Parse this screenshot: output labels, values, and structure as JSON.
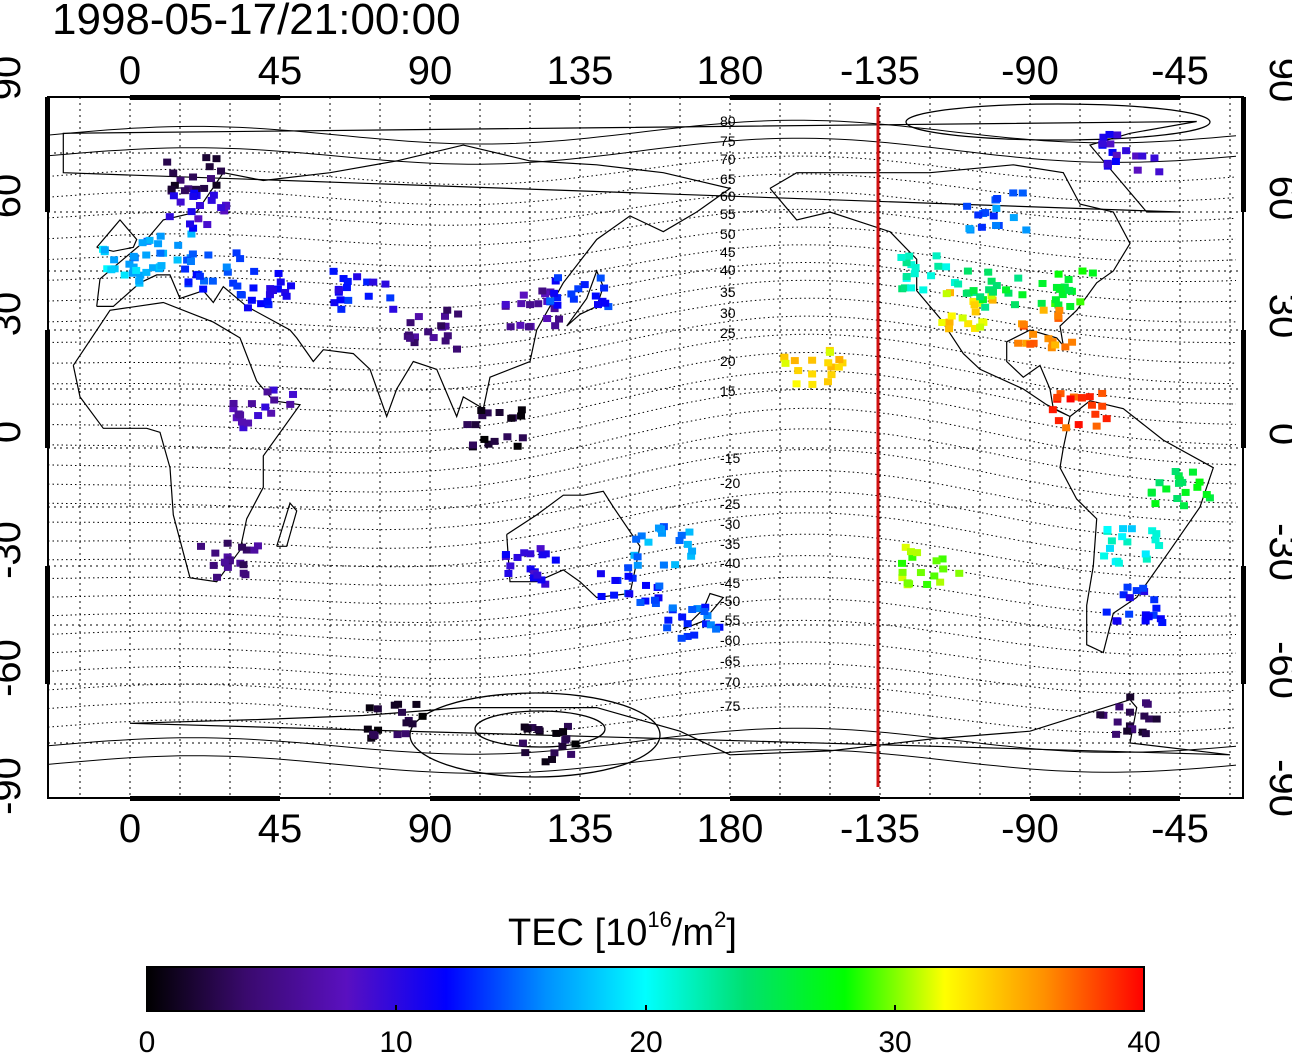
{
  "title": "1998-05-17/21:00:00",
  "map": {
    "x_ticks": [
      "0",
      "45",
      "90",
      "135",
      "180",
      "-135",
      "-90",
      "-45"
    ],
    "y_ticks": [
      "90",
      "60",
      "30",
      "0",
      "-30",
      "-60",
      "-90"
    ],
    "contour_labels": [
      "80",
      "75",
      "70",
      "65",
      "60",
      "55",
      "50",
      "45",
      "40",
      "35",
      "30",
      "25",
      "20",
      "15",
      "-15",
      "-20",
      "-25",
      "-30",
      "-35",
      "-40",
      "-45",
      "-50",
      "-55",
      "-60",
      "-65",
      "-70",
      "-75"
    ],
    "terminator_color": "#d01010"
  },
  "colorbar": {
    "label_main": "TEC  [10",
    "label_sup1": "16",
    "label_mid": "/m",
    "label_sup2": "2",
    "label_end": "]",
    "min": 0,
    "max": 40,
    "ticks": [
      "0",
      "10",
      "20",
      "30",
      "40"
    ],
    "stops": [
      "#000000",
      "#3a0a6e",
      "#5a10c0",
      "#0000ff",
      "#0090ff",
      "#00ffff",
      "#00e070",
      "#00ff00",
      "#ffff00",
      "#ff9000",
      "#ff0000"
    ]
  },
  "tec_clusters": [
    {
      "lon": 0,
      "lat": 46,
      "tec": 18
    },
    {
      "lon": 10,
      "lat": 50,
      "tec": 16
    },
    {
      "lon": 20,
      "lat": 70,
      "tec": 3
    },
    {
      "lon": 20,
      "lat": 60,
      "tec": 10
    },
    {
      "lon": 25,
      "lat": 45,
      "tec": 14
    },
    {
      "lon": 40,
      "lat": 40,
      "tec": 12
    },
    {
      "lon": 40,
      "lat": 10,
      "tec": 8
    },
    {
      "lon": 30,
      "lat": -28,
      "tec": 5
    },
    {
      "lon": 70,
      "lat": 40,
      "tec": 12
    },
    {
      "lon": 90,
      "lat": 30,
      "tec": 5
    },
    {
      "lon": 120,
      "lat": 35,
      "tec": 7
    },
    {
      "lon": 135,
      "lat": 40,
      "tec": 13
    },
    {
      "lon": 120,
      "lat": -30,
      "tec": 10
    },
    {
      "lon": 150,
      "lat": -35,
      "tec": 13
    },
    {
      "lon": 170,
      "lat": -45,
      "tec": 14
    },
    {
      "lon": 160,
      "lat": -25,
      "tec": 16
    },
    {
      "lon": 110,
      "lat": 5,
      "tec": 2
    },
    {
      "lon": 125,
      "lat": -75,
      "tec": 2
    },
    {
      "lon": 80,
      "lat": -70,
      "tec": 2
    },
    {
      "lon": -155,
      "lat": 20,
      "tec": 33
    },
    {
      "lon": -120,
      "lat": 45,
      "tec": 22
    },
    {
      "lon": -110,
      "lat": 35,
      "tec": 33
    },
    {
      "lon": -100,
      "lat": 40,
      "tec": 25
    },
    {
      "lon": -80,
      "lat": 40,
      "tec": 27
    },
    {
      "lon": -85,
      "lat": 30,
      "tec": 36
    },
    {
      "lon": -100,
      "lat": 60,
      "tec": 15
    },
    {
      "lon": -75,
      "lat": 10,
      "tec": 38
    },
    {
      "lon": -45,
      "lat": -10,
      "tec": 26
    },
    {
      "lon": -60,
      "lat": -25,
      "tec": 20
    },
    {
      "lon": -58,
      "lat": -40,
      "tec": 12
    },
    {
      "lon": -120,
      "lat": -30,
      "tec": 30
    },
    {
      "lon": -60,
      "lat": -68,
      "tec": 3
    },
    {
      "lon": -60,
      "lat": 75,
      "tec": 10
    }
  ]
}
